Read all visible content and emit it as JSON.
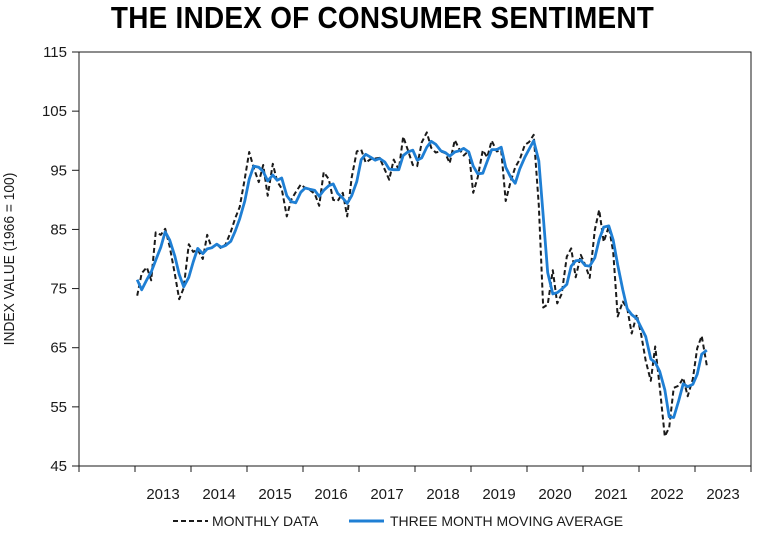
{
  "chart_data": {
    "type": "line",
    "title": "THE INDEX OF CONSUMER SENTIMENT",
    "xlabel": "",
    "ylabel": "INDEX VALUE (1966 = 100)",
    "ylim": [
      45,
      115
    ],
    "xlim": [
      2012.0,
      2024.0
    ],
    "yticks": [
      45,
      55,
      65,
      75,
      85,
      95,
      105,
      115
    ],
    "xticks": [
      2013,
      2014,
      2015,
      2016,
      2017,
      2018,
      2019,
      2020,
      2021,
      2022,
      2023
    ],
    "grid": false,
    "legend": "bottom",
    "series": [
      {
        "name": "MONTHLY DATA",
        "style": "dashed",
        "color": "#1a1a1a",
        "x": [
          2013.0,
          2013.08,
          2013.17,
          2013.25,
          2013.33,
          2013.42,
          2013.5,
          2013.58,
          2013.67,
          2013.75,
          2013.83,
          2013.92,
          2014.0,
          2014.08,
          2014.17,
          2014.25,
          2014.33,
          2014.42,
          2014.5,
          2014.58,
          2014.67,
          2014.75,
          2014.83,
          2014.92,
          2015.0,
          2015.08,
          2015.17,
          2015.25,
          2015.33,
          2015.42,
          2015.5,
          2015.58,
          2015.67,
          2015.75,
          2015.83,
          2015.92,
          2016.0,
          2016.08,
          2016.17,
          2016.25,
          2016.33,
          2016.42,
          2016.5,
          2016.58,
          2016.67,
          2016.75,
          2016.83,
          2016.92,
          2017.0,
          2017.08,
          2017.17,
          2017.25,
          2017.33,
          2017.42,
          2017.5,
          2017.58,
          2017.67,
          2017.75,
          2017.83,
          2017.92,
          2018.0,
          2018.08,
          2018.17,
          2018.25,
          2018.33,
          2018.42,
          2018.5,
          2018.58,
          2018.67,
          2018.75,
          2018.83,
          2018.92,
          2019.0,
          2019.08,
          2019.17,
          2019.25,
          2019.33,
          2019.42,
          2019.5,
          2019.58,
          2019.67,
          2019.75,
          2019.83,
          2019.92,
          2020.0,
          2020.08,
          2020.17,
          2020.25,
          2020.33,
          2020.42,
          2020.5,
          2020.58,
          2020.67,
          2020.75,
          2020.83,
          2020.92,
          2021.0,
          2021.08,
          2021.17,
          2021.25,
          2021.33,
          2021.42,
          2021.5,
          2021.58,
          2021.67,
          2021.75,
          2021.83,
          2021.92,
          2022.0,
          2022.08,
          2022.17,
          2022.25,
          2022.33,
          2022.42,
          2022.5,
          2022.58,
          2022.67,
          2022.75,
          2022.83,
          2022.92,
          2023.0,
          2023.08,
          2023.17
        ],
        "y": [
          73.8,
          77.6,
          78.6,
          76.4,
          84.5,
          84.1,
          85.1,
          82.1,
          77.5,
          73.2,
          75.1,
          82.5,
          81.2,
          81.6,
          80.0,
          84.1,
          81.9,
          82.5,
          81.8,
          82.5,
          84.6,
          86.9,
          88.8,
          93.6,
          98.1,
          95.4,
          93.0,
          95.9,
          90.7,
          96.1,
          93.1,
          91.9,
          87.2,
          90.0,
          91.3,
          92.6,
          92.0,
          91.7,
          91.0,
          89.0,
          94.7,
          93.5,
          90.0,
          89.8,
          91.2,
          87.2,
          93.8,
          98.2,
          98.5,
          96.3,
          96.9,
          97.0,
          97.1,
          95.1,
          93.4,
          96.8,
          95.1,
          100.7,
          98.5,
          95.9,
          95.7,
          99.7,
          101.4,
          98.8,
          98.0,
          98.2,
          97.9,
          96.2,
          100.1,
          98.6,
          97.5,
          98.3,
          91.2,
          93.8,
          98.4,
          97.2,
          100.0,
          98.2,
          98.4,
          89.8,
          93.2,
          95.5,
          96.8,
          99.3,
          99.8,
          101.0,
          89.1,
          71.8,
          72.3,
          78.1,
          72.5,
          74.1,
          80.4,
          81.8,
          76.9,
          80.7,
          79.0,
          76.8,
          84.9,
          88.3,
          82.9,
          85.5,
          81.2,
          70.3,
          72.8,
          71.7,
          67.4,
          70.6,
          67.2,
          62.8,
          59.4,
          65.2,
          58.4,
          50.0,
          51.5,
          58.2,
          58.6,
          59.9,
          56.8,
          59.7,
          64.9,
          67.0,
          62.0
        ],
        "y_display_values": []
      },
      {
        "name": "THREE MONTH MOVING AVERAGE",
        "style": "solid",
        "color": "#1f7fd4",
        "x": [
          2013.0,
          2013.08,
          2013.17,
          2013.25,
          2013.33,
          2013.42,
          2013.5,
          2013.58,
          2013.67,
          2013.75,
          2013.83,
          2013.92,
          2014.0,
          2014.08,
          2014.17,
          2014.25,
          2014.33,
          2014.42,
          2014.5,
          2014.58,
          2014.67,
          2014.75,
          2014.83,
          2014.92,
          2015.0,
          2015.08,
          2015.17,
          2015.25,
          2015.33,
          2015.42,
          2015.5,
          2015.58,
          2015.67,
          2015.75,
          2015.83,
          2015.92,
          2016.0,
          2016.08,
          2016.17,
          2016.25,
          2016.33,
          2016.42,
          2016.5,
          2016.58,
          2016.67,
          2016.75,
          2016.83,
          2016.92,
          2017.0,
          2017.08,
          2017.17,
          2017.25,
          2017.33,
          2017.42,
          2017.5,
          2017.58,
          2017.67,
          2017.75,
          2017.83,
          2017.92,
          2018.0,
          2018.08,
          2018.17,
          2018.25,
          2018.33,
          2018.42,
          2018.5,
          2018.58,
          2018.67,
          2018.75,
          2018.83,
          2018.92,
          2019.0,
          2019.08,
          2019.17,
          2019.25,
          2019.33,
          2019.42,
          2019.5,
          2019.58,
          2019.67,
          2019.75,
          2019.83,
          2019.92,
          2020.0,
          2020.08,
          2020.17,
          2020.25,
          2020.33,
          2020.42,
          2020.5,
          2020.58,
          2020.67,
          2020.75,
          2020.83,
          2020.92,
          2021.0,
          2021.08,
          2021.17,
          2021.25,
          2021.33,
          2021.42,
          2021.5,
          2021.58,
          2021.67,
          2021.75,
          2021.83,
          2021.92,
          2022.0,
          2022.08,
          2022.17,
          2022.25,
          2022.33,
          2022.42,
          2022.5,
          2022.58,
          2022.67,
          2022.75,
          2022.83,
          2022.92,
          2023.0,
          2023.08,
          2023.17
        ],
        "y": [
          76.5,
          74.8,
          76.5,
          77.8,
          79.8,
          82.0,
          84.6,
          83.2,
          80.5,
          77.4,
          75.3,
          76.9,
          79.5,
          81.8,
          80.9,
          81.7,
          81.9,
          82.5,
          82.0,
          82.3,
          83.0,
          84.7,
          86.8,
          89.8,
          93.5,
          95.7,
          95.5,
          94.8,
          93.2,
          94.2,
          93.3,
          93.7,
          90.7,
          89.7,
          89.5,
          91.3,
          92.0,
          91.8,
          91.6,
          90.6,
          91.6,
          92.4,
          92.7,
          91.1,
          90.3,
          89.4,
          90.7,
          93.1,
          96.8,
          97.7,
          97.2,
          96.7,
          97.0,
          96.4,
          95.2,
          95.1,
          95.1,
          97.5,
          98.1,
          98.4,
          96.7,
          97.1,
          98.9,
          99.9,
          99.4,
          98.3,
          98.0,
          97.4,
          98.1,
          98.3,
          98.7,
          98.1,
          95.7,
          94.4,
          94.5,
          96.5,
          98.5,
          98.5,
          98.9,
          95.5,
          93.8,
          92.8,
          95.2,
          97.2,
          98.6,
          100.0,
          96.6,
          87.3,
          77.7,
          74.1,
          74.3,
          74.9,
          75.7,
          78.8,
          79.7,
          79.8,
          78.9,
          78.8,
          80.2,
          83.3,
          85.4,
          85.6,
          83.2,
          79.0,
          74.8,
          71.6,
          70.6,
          69.9,
          68.4,
          66.9,
          63.1,
          62.5,
          61.0,
          57.9,
          53.3,
          53.2,
          56.1,
          58.9,
          58.4,
          58.8,
          60.5,
          63.9,
          64.6
        ],
        "y_display_values": []
      }
    ]
  }
}
